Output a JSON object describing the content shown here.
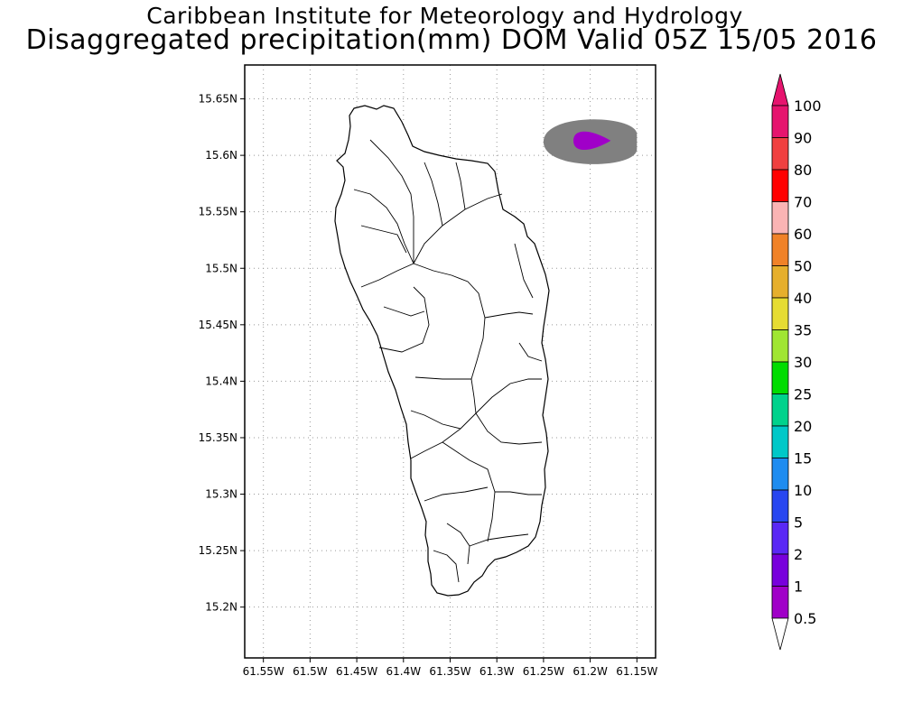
{
  "title": {
    "line1": "Caribbean Institute for Meteorology and Hydrology",
    "line2": "Disaggregated precipitation(mm) DOM Valid 05Z 15/05 2016"
  },
  "map": {
    "lon_range": [
      -61.57,
      -61.13
    ],
    "lat_range": [
      15.155,
      15.68
    ],
    "lat_ticks": [
      {
        "value": 15.65,
        "label": "15.65N"
      },
      {
        "value": 15.6,
        "label": "15.6N"
      },
      {
        "value": 15.55,
        "label": "15.55N"
      },
      {
        "value": 15.5,
        "label": "15.5N"
      },
      {
        "value": 15.45,
        "label": "15.45N"
      },
      {
        "value": 15.4,
        "label": "15.4N"
      },
      {
        "value": 15.35,
        "label": "15.35N"
      },
      {
        "value": 15.3,
        "label": "15.3N"
      },
      {
        "value": 15.25,
        "label": "15.25N"
      },
      {
        "value": 15.2,
        "label": "15.2N"
      }
    ],
    "lon_ticks": [
      {
        "value": -61.55,
        "label": "61.55W"
      },
      {
        "value": -61.5,
        "label": "61.5W"
      },
      {
        "value": -61.45,
        "label": "61.45W"
      },
      {
        "value": -61.4,
        "label": "61.4W"
      },
      {
        "value": -61.35,
        "label": "61.35W"
      },
      {
        "value": -61.3,
        "label": "61.3W"
      },
      {
        "value": -61.25,
        "label": "61.25W"
      },
      {
        "value": -61.2,
        "label": "61.2W"
      },
      {
        "value": -61.15,
        "label": "61.15W"
      }
    ],
    "precip_areas": [
      {
        "band": "0.5-1",
        "color": "#808080",
        "center": [
          -61.2,
          15.612
        ],
        "lon_radius": 0.05,
        "lat_radius": 0.022
      },
      {
        "band": "1-2",
        "color": "#a000c8",
        "center": [
          -61.198,
          15.613
        ],
        "lon_radius": 0.02,
        "lat_radius": 0.009
      }
    ],
    "island": "Dominica"
  },
  "legend": {
    "levels": [
      "0.5",
      "1",
      "2",
      "5",
      "10",
      "15",
      "20",
      "25",
      "30",
      "35",
      "40",
      "50",
      "60",
      "70",
      "80",
      "90",
      "100"
    ],
    "colors": [
      "#808080",
      "#a000c8",
      "#7800dc",
      "#5a28f5",
      "#2846f0",
      "#1e8cf0",
      "#00c8c8",
      "#00d28c",
      "#00dc00",
      "#a0e632",
      "#e6dc32",
      "#e6af2d",
      "#f08228",
      "#fab4b4",
      "#ff0000",
      "#f04040",
      "#e6146e"
    ],
    "low_arrow_color": "#ffffff",
    "high_arrow_color": "#e6146e"
  }
}
